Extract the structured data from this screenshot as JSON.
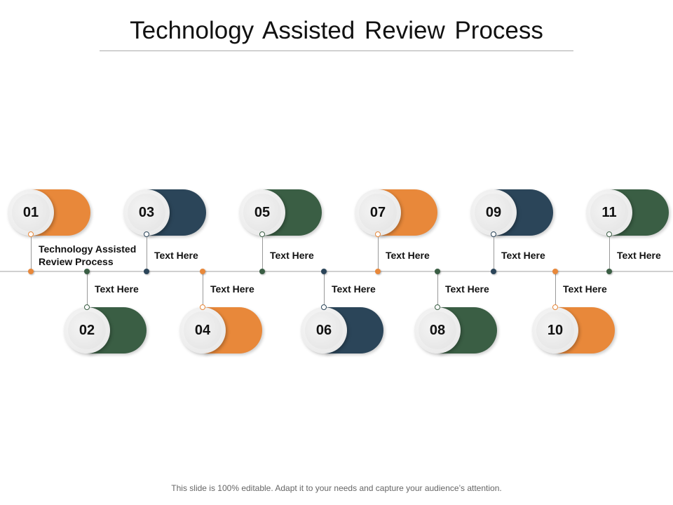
{
  "title": "Technology Assisted Review Process",
  "footer": "This slide is 100% editable. Adapt it to your needs and capture your audience’s attention.",
  "colors": {
    "orange": "#E8883A",
    "navy": "#2B4559",
    "green": "#3A5E44"
  },
  "items": [
    {
      "number": "01",
      "label": "Technology Assisted Review Process",
      "color": "orange",
      "row": "top"
    },
    {
      "number": "02",
      "label": "Text Here",
      "color": "green",
      "row": "bottom"
    },
    {
      "number": "03",
      "label": "Text Here",
      "color": "navy",
      "row": "top"
    },
    {
      "number": "04",
      "label": "Text Here",
      "color": "orange",
      "row": "bottom"
    },
    {
      "number": "05",
      "label": "Text Here",
      "color": "green",
      "row": "top"
    },
    {
      "number": "06",
      "label": "Text Here",
      "color": "navy",
      "row": "bottom"
    },
    {
      "number": "07",
      "label": "Text Here",
      "color": "orange",
      "row": "top"
    },
    {
      "number": "08",
      "label": "Text Here",
      "color": "green",
      "row": "bottom"
    },
    {
      "number": "09",
      "label": "Text Here",
      "color": "navy",
      "row": "top"
    },
    {
      "number": "10",
      "label": "Text Here",
      "color": "orange",
      "row": "bottom"
    },
    {
      "number": "11",
      "label": "Text Here",
      "color": "green",
      "row": "top"
    }
  ]
}
